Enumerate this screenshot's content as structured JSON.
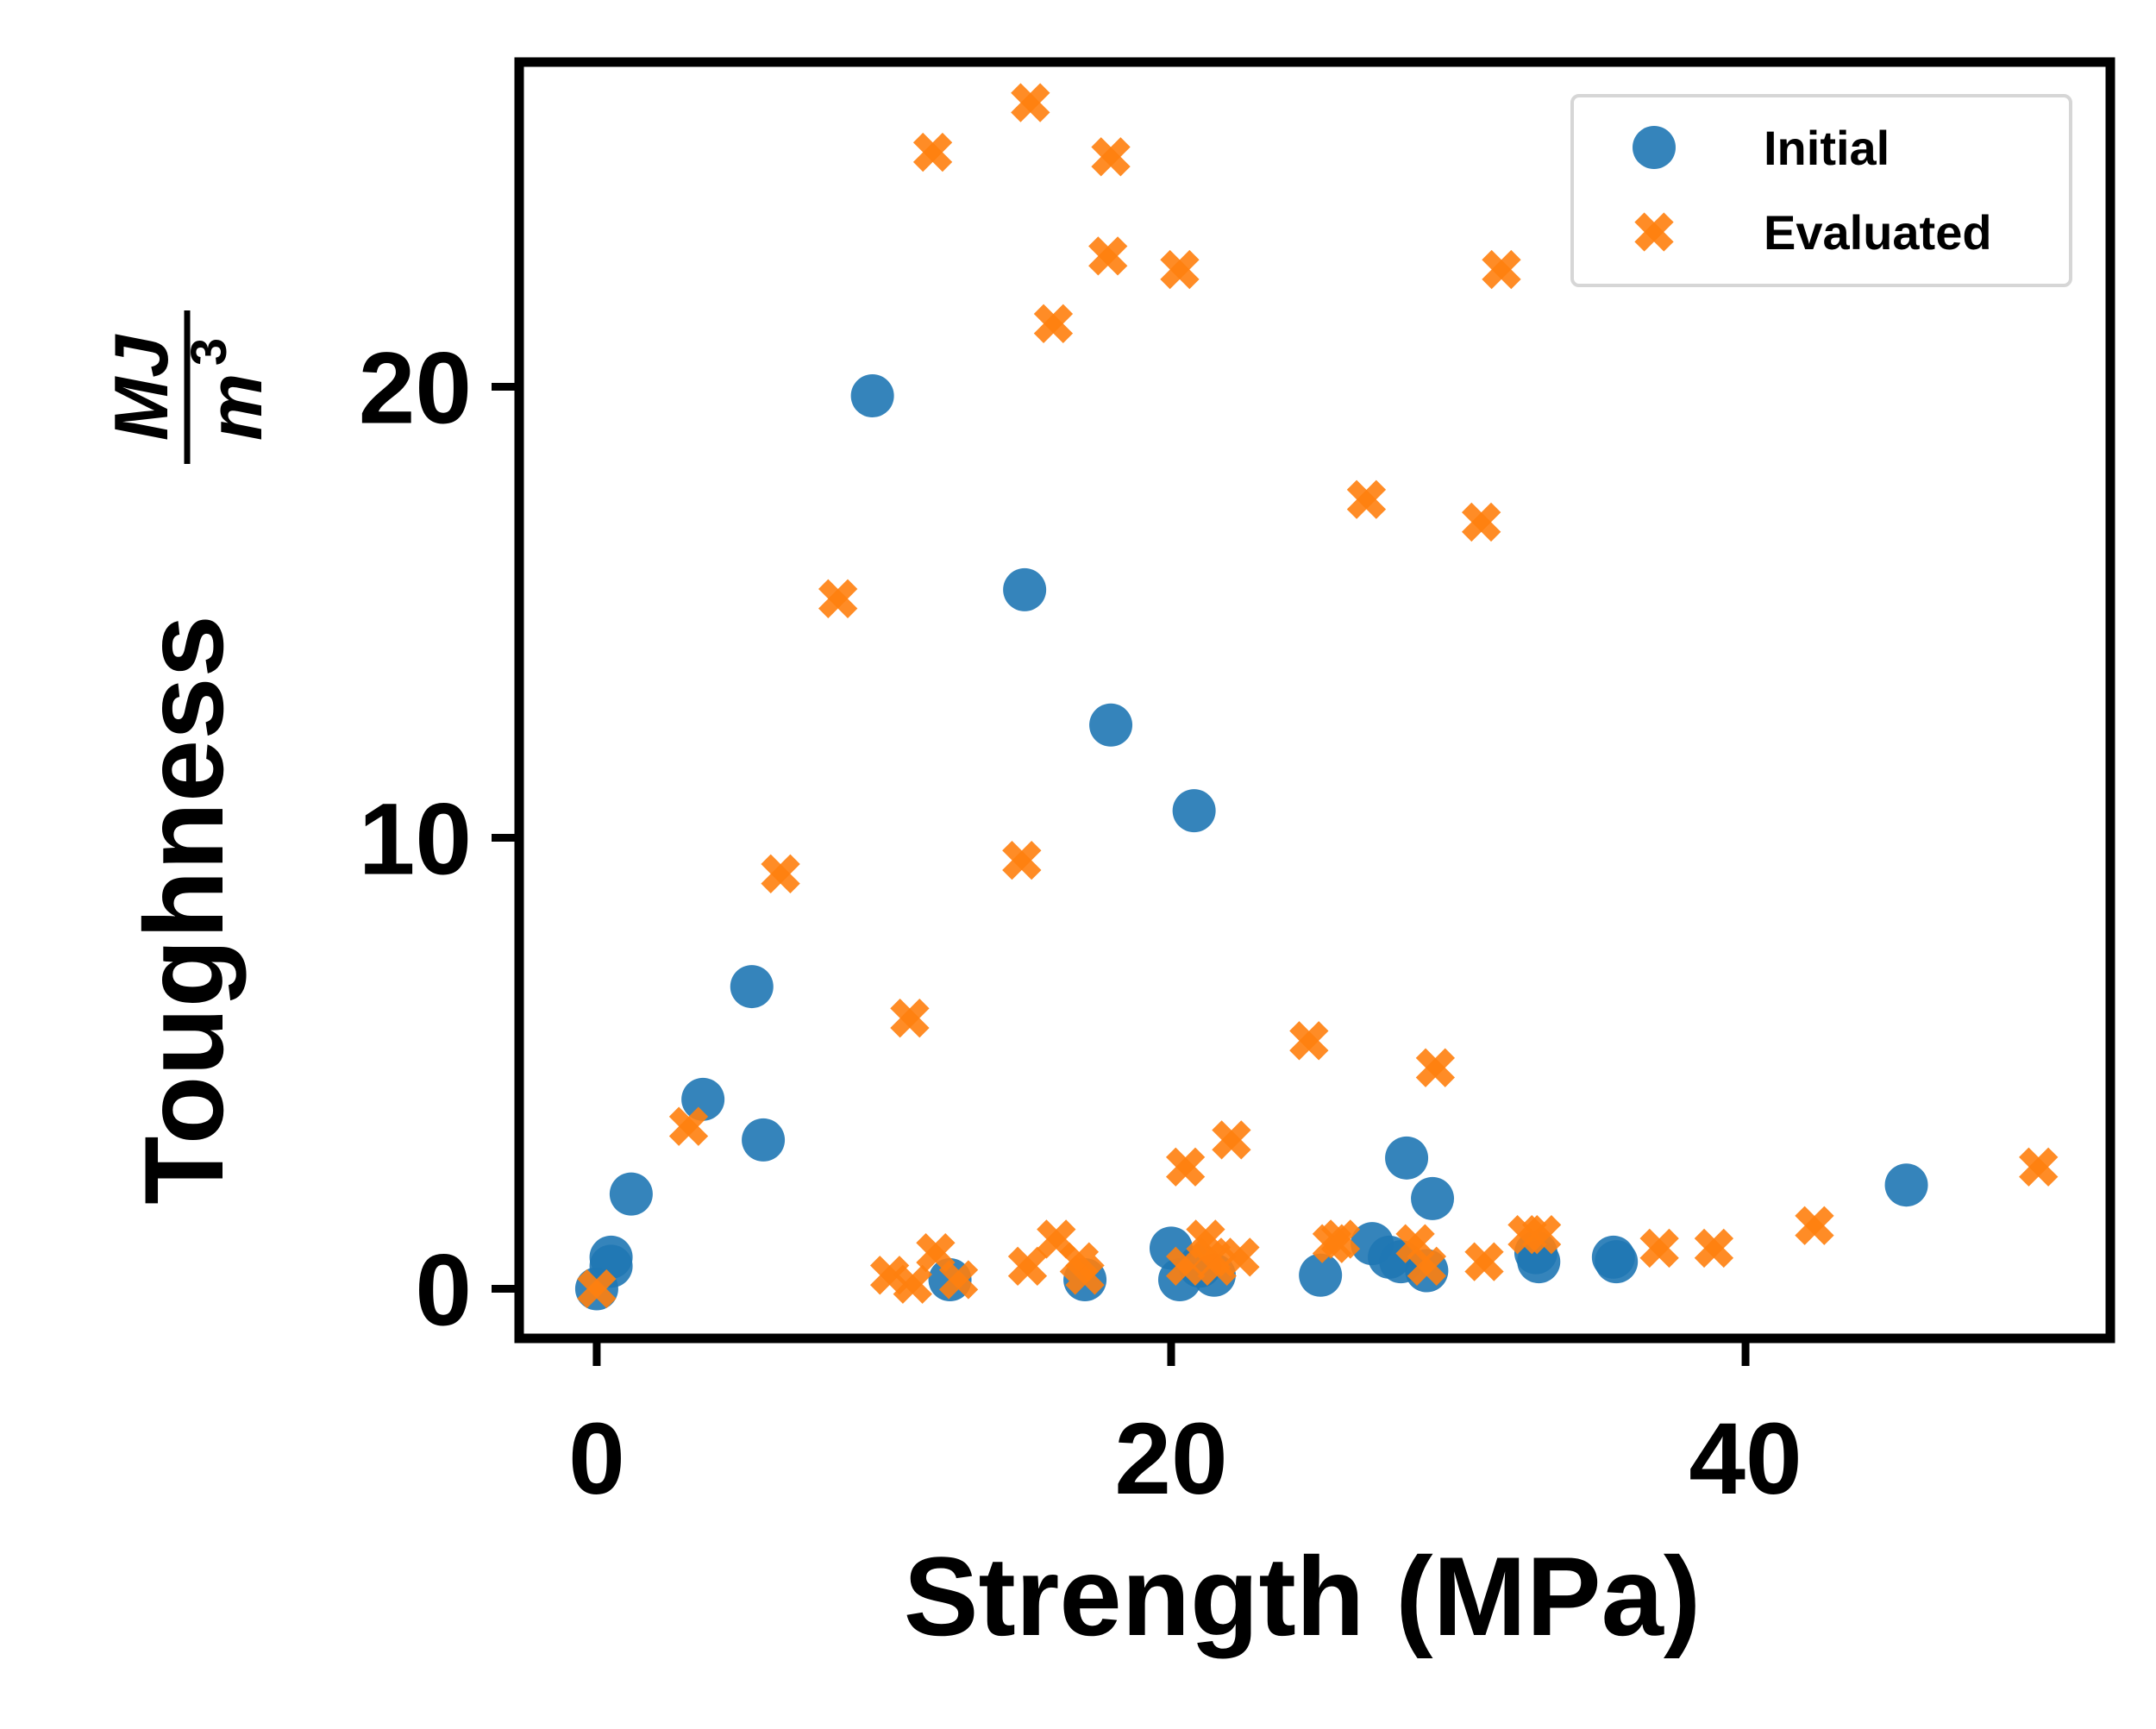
{
  "chart_data": {
    "type": "scatter",
    "xlabel": "Strength (MPa)",
    "ylabel": "Toughness",
    "ylabel_unit_numerator": "MJ",
    "ylabel_unit_denominator": "m",
    "ylabel_unit_exponent": "3",
    "xlim": [
      -2.7,
      52.7
    ],
    "ylim": [
      -1.1,
      27.2
    ],
    "xticks": [
      0,
      20,
      40
    ],
    "yticks": [
      0,
      10,
      20
    ],
    "xtick_labels": [
      "0",
      "20",
      "40"
    ],
    "ytick_labels": [
      "0",
      "10",
      "20"
    ],
    "grid": false,
    "legend_position": "top-right",
    "series": [
      {
        "name": "Initial",
        "marker": "circle",
        "color": "#1f77b4",
        "points": [
          [
            0,
            0
          ],
          [
            0.5,
            0.7
          ],
          [
            0.5,
            0.5
          ],
          [
            1.2,
            2.1
          ],
          [
            3.7,
            4.2
          ],
          [
            5.4,
            6.7
          ],
          [
            5.8,
            3.3
          ],
          [
            9.6,
            19.8
          ],
          [
            12.3,
            0.2
          ],
          [
            14.9,
            15.5
          ],
          [
            17.0,
            0.2
          ],
          [
            17.9,
            12.5
          ],
          [
            20.0,
            0.9
          ],
          [
            20.3,
            0.2
          ],
          [
            20.8,
            10.6
          ],
          [
            21.0,
            0.5
          ],
          [
            21.5,
            0.3
          ],
          [
            25.2,
            0.3
          ],
          [
            27.0,
            1.0
          ],
          [
            27.6,
            0.7
          ],
          [
            28.0,
            0.6
          ],
          [
            28.2,
            2.9
          ],
          [
            28.9,
            0.4
          ],
          [
            29.1,
            2.0
          ],
          [
            32.7,
            0.8
          ],
          [
            32.8,
            0.6
          ],
          [
            35.4,
            0.7
          ],
          [
            35.5,
            0.6
          ],
          [
            45.6,
            2.3
          ]
        ]
      },
      {
        "name": "Evaluated",
        "marker": "x",
        "color": "#ff7f0e",
        "points": [
          [
            0,
            0
          ],
          [
            3.2,
            3.6
          ],
          [
            6.4,
            9.2
          ],
          [
            8.4,
            15.3
          ],
          [
            10.2,
            0.3
          ],
          [
            10.9,
            6.0
          ],
          [
            11.0,
            0.1
          ],
          [
            11.7,
            25.2
          ],
          [
            11.8,
            0.8
          ],
          [
            12.6,
            0.2
          ],
          [
            14.8,
            9.5
          ],
          [
            15.0,
            0.5
          ],
          [
            15.1,
            26.3
          ],
          [
            15.9,
            21.4
          ],
          [
            16.0,
            1.1
          ],
          [
            16.8,
            0.6
          ],
          [
            17.0,
            0.3
          ],
          [
            17.8,
            22.9
          ],
          [
            17.9,
            25.1
          ],
          [
            20.3,
            22.6
          ],
          [
            20.5,
            2.7
          ],
          [
            20.5,
            0.5
          ],
          [
            21.2,
            1.1
          ],
          [
            21.4,
            0.7
          ],
          [
            21.6,
            0.5
          ],
          [
            22.1,
            3.3
          ],
          [
            22.4,
            0.7
          ],
          [
            24.8,
            5.5
          ],
          [
            25.6,
            1.0
          ],
          [
            25.9,
            1.1
          ],
          [
            26.8,
            17.5
          ],
          [
            28.5,
            1.0
          ],
          [
            28.9,
            0.5
          ],
          [
            29.2,
            4.9
          ],
          [
            30.8,
            17.0
          ],
          [
            30.9,
            0.6
          ],
          [
            31.5,
            22.6
          ],
          [
            32.4,
            1.2
          ],
          [
            32.9,
            1.2
          ],
          [
            37.0,
            0.9
          ],
          [
            38.9,
            0.9
          ],
          [
            42.4,
            1.4
          ],
          [
            50.2,
            2.7
          ]
        ]
      }
    ]
  }
}
